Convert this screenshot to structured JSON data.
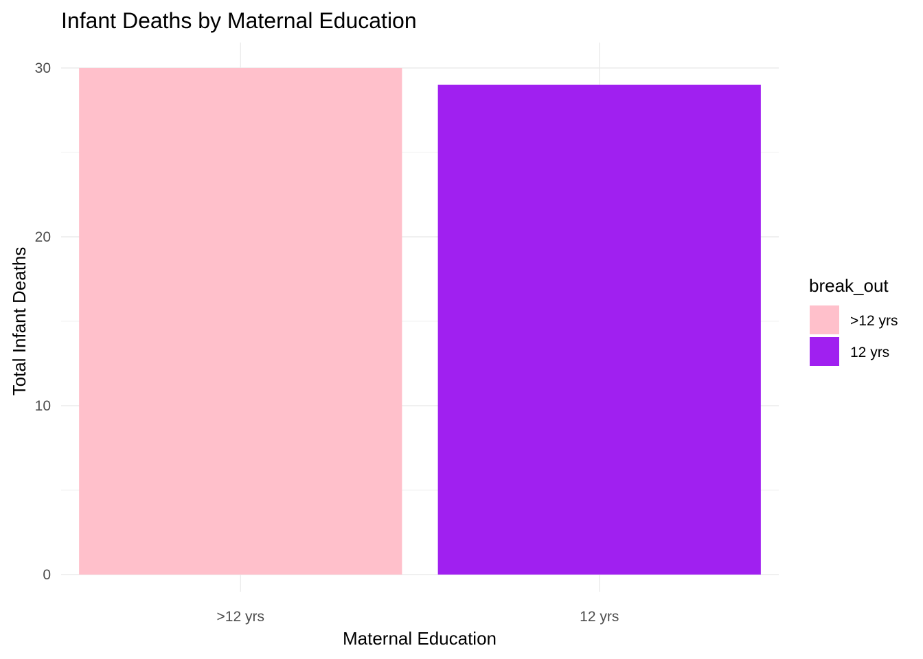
{
  "chart_data": {
    "type": "bar",
    "title": "Infant Deaths by Maternal Education",
    "xlabel": "Maternal Education",
    "ylabel": "Total Infant Deaths",
    "categories": [
      ">12 yrs",
      "12 yrs"
    ],
    "values": [
      30,
      29
    ],
    "colors": [
      "#FFC0CB",
      "#A020F0"
    ],
    "ylim": [
      0,
      30
    ],
    "yticks": [
      0,
      10,
      20,
      30
    ],
    "grid": true,
    "legend": {
      "title": "break_out",
      "position": "right",
      "items": [
        {
          "label": ">12 yrs",
          "color": "#FFC0CB"
        },
        {
          "label": "12 yrs",
          "color": "#A020F0"
        }
      ]
    }
  }
}
